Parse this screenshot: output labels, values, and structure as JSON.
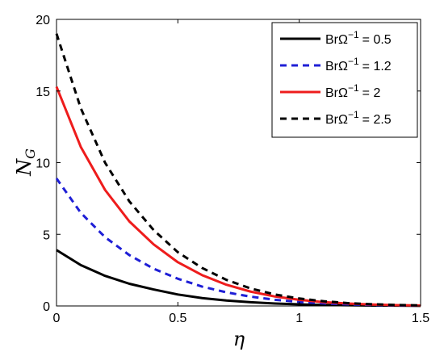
{
  "chart_data": {
    "type": "line",
    "title": "",
    "xlabel": "η",
    "ylabel_main": "N",
    "ylabel_sub": "G",
    "xlim": [
      0,
      1.5
    ],
    "ylim": [
      0,
      20
    ],
    "xticks": [
      "0",
      "0.5",
      "1",
      "1.5"
    ],
    "yticks": [
      "0",
      "5",
      "10",
      "15",
      "20"
    ],
    "grid": false,
    "legend_position": "top-right",
    "legend_prefix": "BrΩ",
    "legend_exponent": "−1",
    "series": [
      {
        "name_value": "= 0.5",
        "color": "#000000",
        "style": "solid",
        "x": [
          0,
          0.1,
          0.2,
          0.3,
          0.4,
          0.5,
          0.6,
          0.7,
          0.8,
          0.9,
          1.0,
          1.1,
          1.2,
          1.3,
          1.4,
          1.5
        ],
        "y": [
          3.9,
          2.85,
          2.1,
          1.55,
          1.15,
          0.8,
          0.55,
          0.38,
          0.26,
          0.17,
          0.11,
          0.07,
          0.05,
          0.03,
          0.02,
          0.01
        ]
      },
      {
        "name_value": "= 1.2",
        "color": "#1f1fd6",
        "style": "dashed",
        "x": [
          0,
          0.1,
          0.2,
          0.3,
          0.4,
          0.5,
          0.6,
          0.7,
          0.8,
          0.9,
          1.0,
          1.1,
          1.2,
          1.3,
          1.4,
          1.5
        ],
        "y": [
          8.9,
          6.5,
          4.8,
          3.55,
          2.6,
          1.9,
          1.35,
          0.95,
          0.65,
          0.43,
          0.28,
          0.18,
          0.11,
          0.07,
          0.04,
          0.02
        ]
      },
      {
        "name_value": "=   2",
        "color": "#ee1c1c",
        "style": "solid",
        "x": [
          0,
          0.1,
          0.2,
          0.3,
          0.4,
          0.5,
          0.6,
          0.7,
          0.8,
          0.9,
          1.0,
          1.1,
          1.2,
          1.3,
          1.4,
          1.5
        ],
        "y": [
          15.3,
          11.1,
          8.1,
          5.9,
          4.3,
          3.05,
          2.15,
          1.48,
          1.0,
          0.66,
          0.43,
          0.27,
          0.17,
          0.1,
          0.06,
          0.03
        ]
      },
      {
        "name_value": "= 2.5",
        "color": "#000000",
        "style": "dashed",
        "x": [
          0,
          0.1,
          0.2,
          0.3,
          0.4,
          0.5,
          0.6,
          0.7,
          0.8,
          0.9,
          1.0,
          1.1,
          1.2,
          1.3,
          1.4,
          1.5
        ],
        "y": [
          19.0,
          13.8,
          10.0,
          7.3,
          5.3,
          3.75,
          2.65,
          1.82,
          1.22,
          0.8,
          0.52,
          0.33,
          0.2,
          0.12,
          0.07,
          0.04
        ]
      }
    ]
  }
}
